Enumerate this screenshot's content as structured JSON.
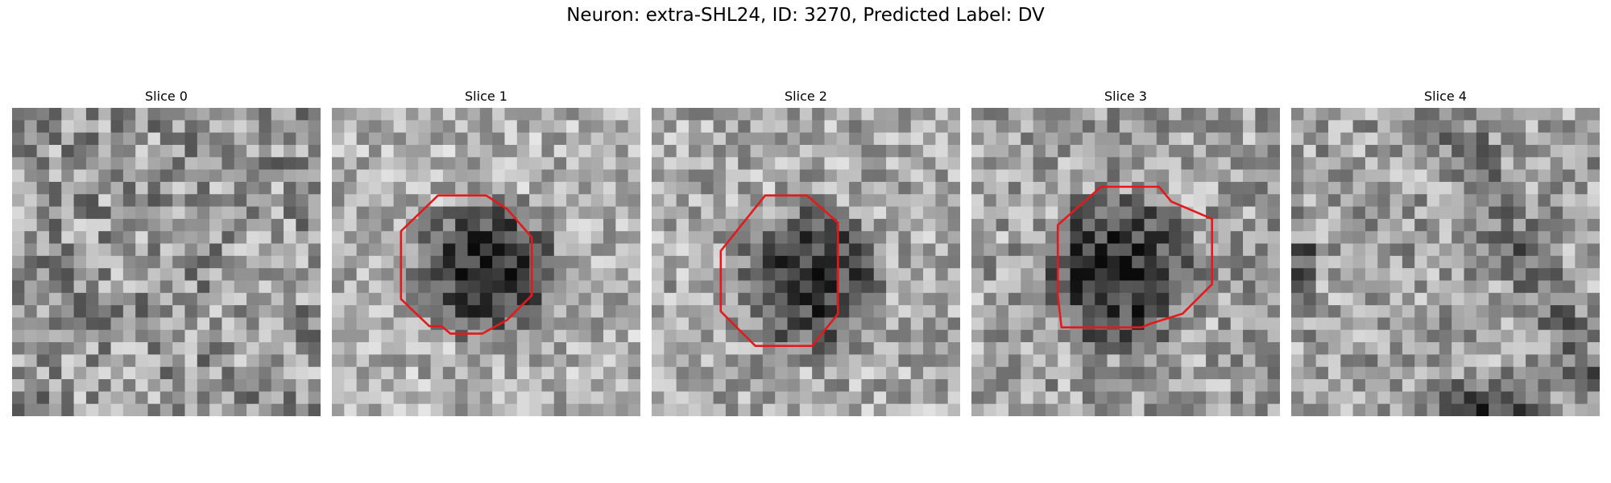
{
  "figure": {
    "title": "Neuron: extra-SHL24, ID: 3270, Predicted Label: DV"
  },
  "panels": [
    {
      "title": "Slice 0",
      "seed": 11,
      "has_roi": false,
      "dark_blob": false
    },
    {
      "title": "Slice 1",
      "seed": 23,
      "has_roi": true,
      "dark_blob": true
    },
    {
      "title": "Slice 2",
      "seed": 37,
      "has_roi": true,
      "dark_blob": true
    },
    {
      "title": "Slice 3",
      "seed": 53,
      "has_roi": true,
      "dark_blob": true
    },
    {
      "title": "Slice 4",
      "seed": 71,
      "has_roi": false,
      "dark_blob": false
    }
  ],
  "colors": {
    "roi_outline": "#e31a1c",
    "colormap": "grayscale"
  }
}
